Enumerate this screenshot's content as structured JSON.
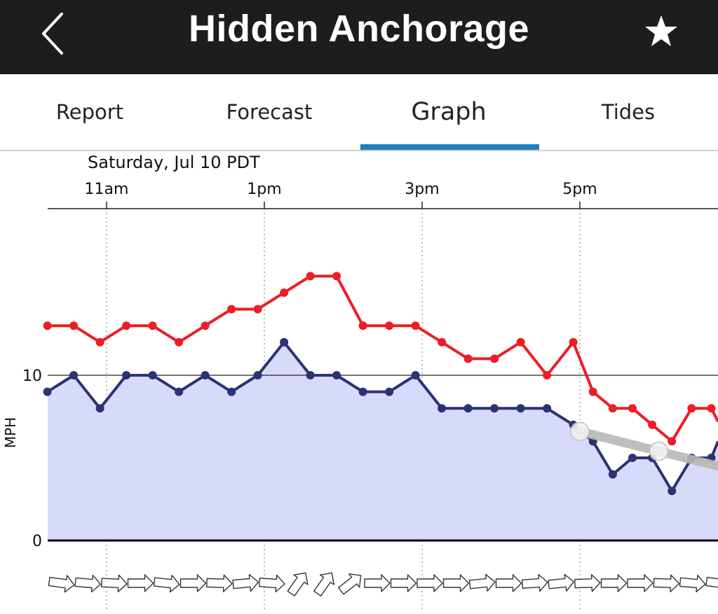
{
  "header": {
    "title": "Hidden Anchorage",
    "back_icon": "chevron-left-icon",
    "favorite_icon": "star-icon"
  },
  "tabs": [
    {
      "label": "Report",
      "active": false
    },
    {
      "label": "Forecast",
      "active": false
    },
    {
      "label": "Graph",
      "active": true
    },
    {
      "label": "Tides",
      "active": false
    }
  ],
  "colors": {
    "header_bg": "#1d1d1d",
    "tab_indicator": "#1f7fbf",
    "gust_line": "#ee1c25",
    "avg_line": "#2b3275",
    "avg_fill": "#d8daf9",
    "trend_line": "#b8b8b8"
  },
  "chart_data": {
    "type": "line",
    "date_label": "Saturday, Jul 10 PDT",
    "x_ticks": [
      "11am",
      "1pm",
      "3pm",
      "5pm"
    ],
    "ylabel": "MPH",
    "y_ticks": [
      "0",
      "10"
    ],
    "ylim": [
      0,
      20
    ],
    "x": [
      "10:15",
      "10:35",
      "10:55",
      "11:15",
      "11:35",
      "11:55",
      "12:15",
      "12:35",
      "12:55",
      "13:15",
      "13:35",
      "13:55",
      "14:15",
      "14:35",
      "14:55",
      "15:15",
      "15:35",
      "15:55",
      "16:15",
      "16:35",
      "16:55",
      "17:10",
      "17:25",
      "17:40",
      "17:55",
      "18:10",
      "18:25",
      "18:40"
    ],
    "series": [
      {
        "values": [
          13,
          13,
          12,
          13,
          13,
          12,
          13,
          14,
          14,
          15,
          16,
          16,
          13,
          13,
          13,
          12,
          11,
          11,
          12,
          10,
          12,
          9,
          8,
          8,
          7,
          6,
          8,
          8
        ]
      },
      {
        "values": [
          9,
          10,
          8,
          10,
          10,
          9,
          10,
          9,
          10,
          12,
          10,
          10,
          9,
          9,
          10,
          8,
          8,
          8,
          8,
          8,
          7,
          6,
          4,
          5,
          5,
          3,
          5,
          5
        ]
      }
    ],
    "trend_points": [
      [
        17.0,
        6.6
      ],
      [
        18.0,
        5.4
      ]
    ],
    "grid": true,
    "legend": "none"
  }
}
